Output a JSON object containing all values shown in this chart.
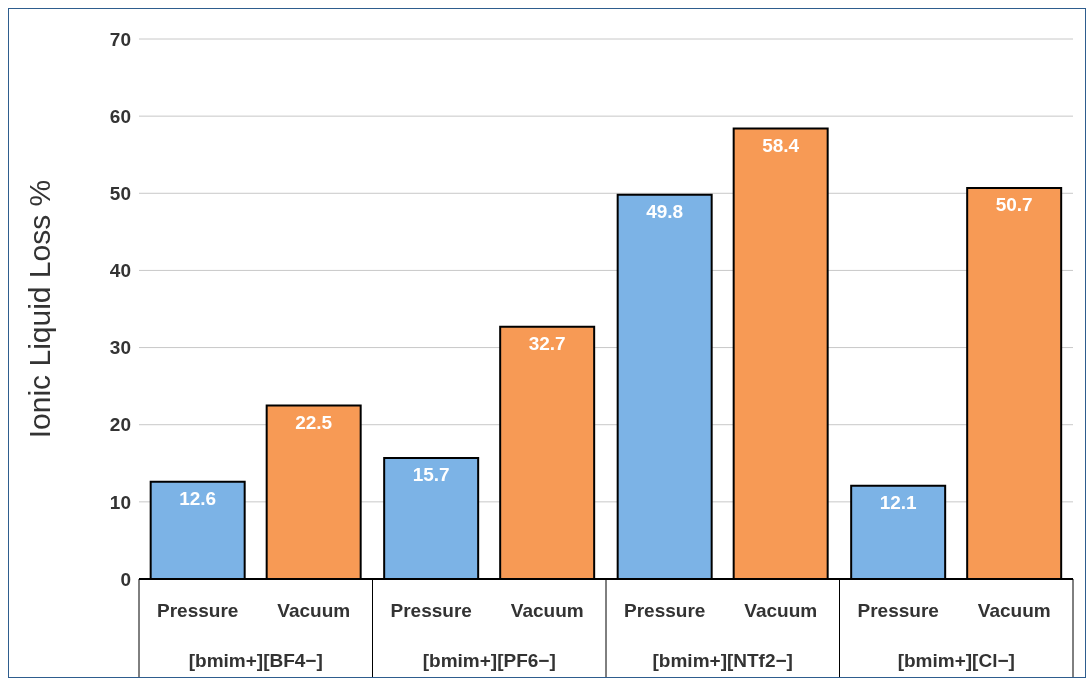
{
  "chart_data": {
    "type": "bar",
    "categories": [
      "[bmim+][BF4−]",
      "[bmim+][PF6−]",
      "[bmim+][NTf2−]",
      "[bmim+][Cl−]"
    ],
    "series": [
      {
        "name": "Pressure",
        "color": "#7cb3e6",
        "values": [
          12.6,
          15.7,
          49.8,
          12.1
        ]
      },
      {
        "name": "Vacuum",
        "color": "#f79a55",
        "values": [
          22.5,
          32.7,
          58.4,
          50.7
        ]
      }
    ],
    "ylabel": "Ionic Liquid Loss %",
    "ylim": [
      0,
      70
    ],
    "yticks": [
      0,
      10,
      20,
      30,
      40,
      50,
      60,
      70
    ],
    "grid": "y",
    "data_labels": true
  }
}
